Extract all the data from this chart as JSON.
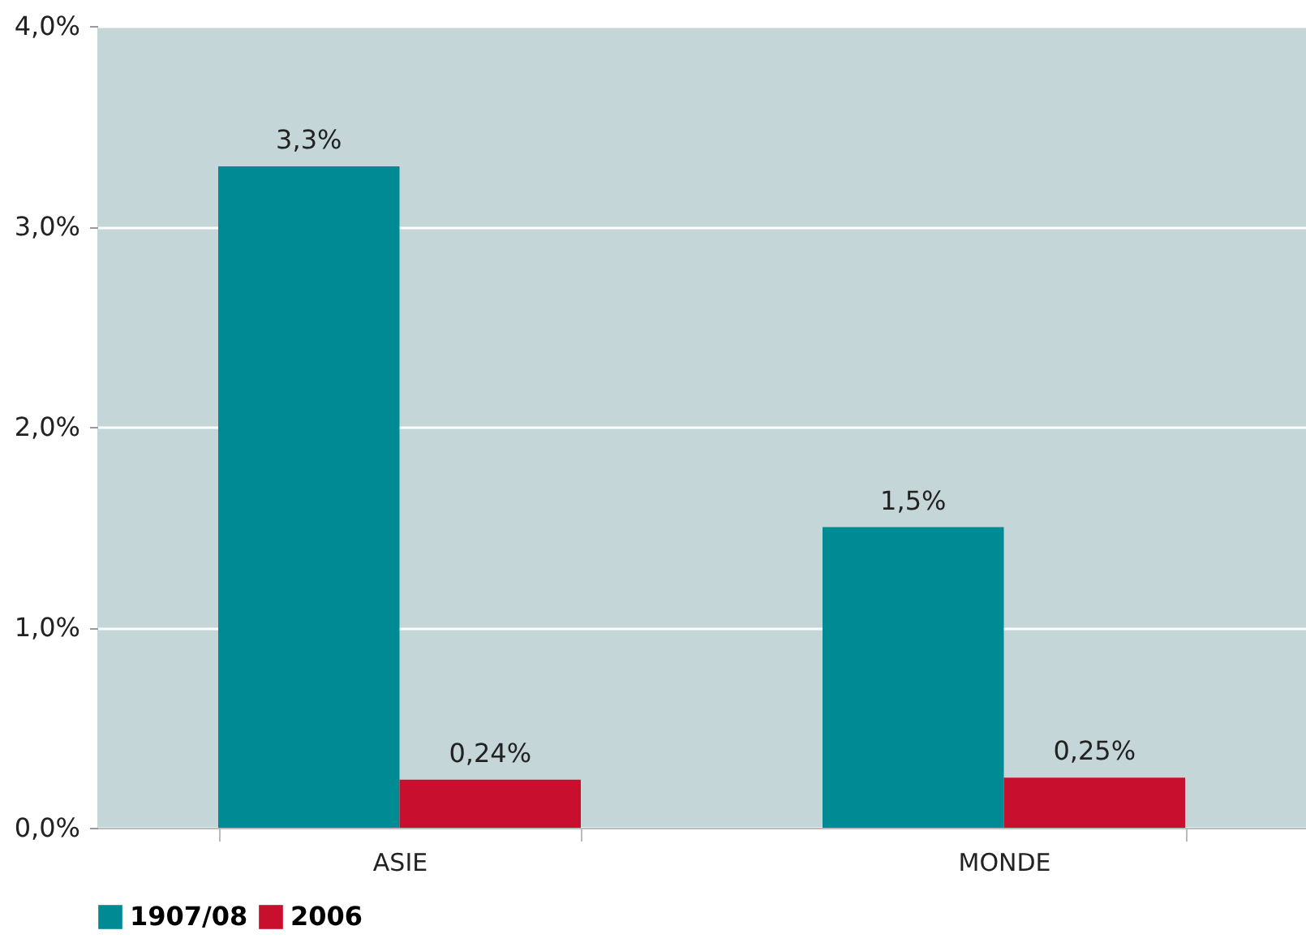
{
  "chart_data": {
    "type": "bar",
    "categories": [
      "ASIE",
      "MONDE"
    ],
    "series": [
      {
        "name": "1907/08",
        "color": "#008b94",
        "values": [
          3.3,
          1.5
        ],
        "value_labels": [
          "3,3%",
          "1,5%"
        ]
      },
      {
        "name": "2006",
        "color": "#c8102e",
        "values": [
          0.24,
          0.25
        ],
        "value_labels": [
          "0,24%",
          "0,25%"
        ]
      }
    ],
    "ylim": [
      0,
      4
    ],
    "yticks": [
      {
        "value": 0,
        "label": "0,0%"
      },
      {
        "value": 1,
        "label": "1,0%"
      },
      {
        "value": 2,
        "label": "2,0%"
      },
      {
        "value": 3,
        "label": "3,0%"
      },
      {
        "value": 4,
        "label": "4,0%"
      }
    ],
    "grid": "y",
    "legend": "bottom"
  }
}
